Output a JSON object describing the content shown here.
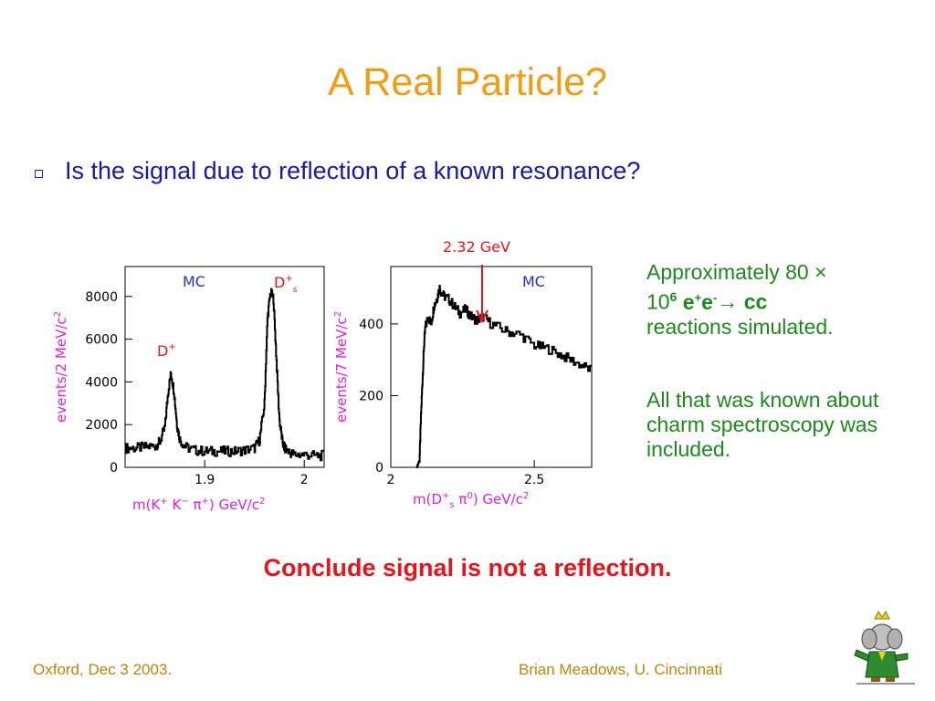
{
  "slide": {
    "title": "A Real Particle?",
    "bullet": "Is the signal due to reflection of a known resonance?",
    "side_text_1": {
      "prefix": "Approximately 80 ",
      "times": "×",
      "base": "10",
      "exp": "6",
      "e1": "e",
      "sup_plus": "+",
      "e2": "e",
      "sup_minus": "-",
      "arrow": "→",
      "cc": " cc",
      "suffix": "reactions simulated."
    },
    "side_text_2": "All that was known about charm spectroscopy was included.",
    "conclusion": "Conclude signal is not a reflection.",
    "footer_left": "Oxford, Dec 3 2003.",
    "footer_right": "Brian Meadows, U. Cincinnati"
  },
  "colors": {
    "title": "#f39c12",
    "bullet": "#1a1aa8",
    "side": "#1b8a1b",
    "conclusion": "#e8141b",
    "footer": "#b8860b",
    "axis_label": "#e020e0",
    "annotation": "#e8141b",
    "mc_label": "#2030d0"
  },
  "chart_data": [
    {
      "type": "line",
      "label_mc": "MC",
      "peak_labels": [
        "D+",
        "D+s"
      ],
      "xlabel": "m(K+ K- π+) GeV/c2",
      "ylabel": "events/2 MeV/c2",
      "xlim": [
        1.82,
        2.02
      ],
      "ylim": [
        0,
        9400
      ],
      "xticks": [
        "1.9",
        "2"
      ],
      "yticks": [
        "0",
        "2000",
        "4000",
        "6000",
        "8000"
      ],
      "x": [
        1.82,
        1.83,
        1.84,
        1.85,
        1.855,
        1.86,
        1.863,
        1.866,
        1.869,
        1.872,
        1.875,
        1.88,
        1.89,
        1.9,
        1.91,
        1.92,
        1.93,
        1.94,
        1.95,
        1.955,
        1.96,
        1.963,
        1.966,
        1.969,
        1.972,
        1.975,
        1.978,
        1.98,
        1.985,
        1.99,
        2.0,
        2.01,
        2.02
      ],
      "y": [
        900,
        900,
        950,
        1000,
        1200,
        1900,
        3500,
        4400,
        3600,
        2000,
        1300,
        950,
        800,
        750,
        750,
        750,
        750,
        800,
        900,
        1300,
        3000,
        7000,
        8200,
        7900,
        5000,
        2200,
        1200,
        900,
        700,
        600,
        600,
        550,
        550
      ]
    },
    {
      "type": "line",
      "label_mc": "MC",
      "annotation": "2.32 GeV",
      "xlabel": "m(D+s π0) GeV/c2",
      "ylabel": "events/7 MeV/c2",
      "xlim": [
        2.0,
        2.7
      ],
      "ylim": [
        0,
        560
      ],
      "xticks": [
        "2",
        "2.5"
      ],
      "yticks": [
        "0",
        "200",
        "400"
      ],
      "x": [
        2.09,
        2.1,
        2.105,
        2.11,
        2.115,
        2.12,
        2.13,
        2.14,
        2.15,
        2.16,
        2.17,
        2.18,
        2.2,
        2.22,
        2.24,
        2.26,
        2.28,
        2.3,
        2.32,
        2.35,
        2.4,
        2.45,
        2.5,
        2.55,
        2.6,
        2.65,
        2.7
      ],
      "y": [
        0,
        20,
        140,
        240,
        330,
        390,
        420,
        400,
        450,
        470,
        500,
        480,
        470,
        450,
        430,
        440,
        420,
        410,
        420,
        400,
        380,
        370,
        340,
        330,
        310,
        290,
        270
      ]
    }
  ]
}
